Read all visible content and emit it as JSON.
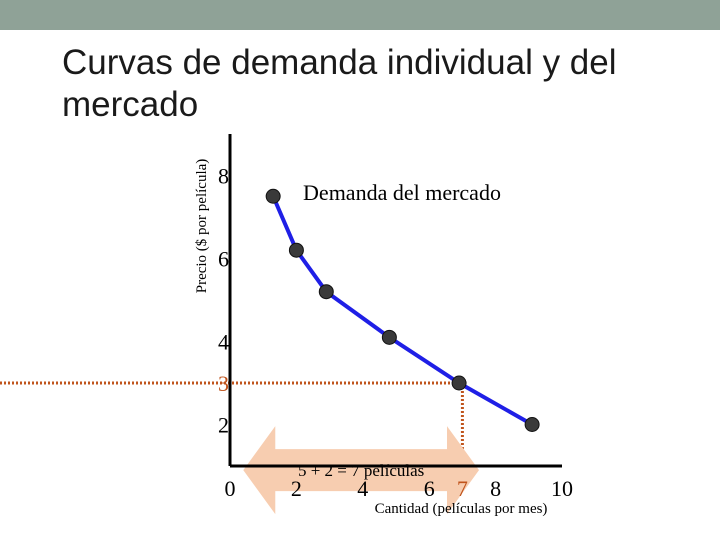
{
  "slide": {
    "title": "Curvas de demanda individual y del mercado"
  },
  "colors": {
    "top_bar": "#8fa297",
    "curve": "#1f1fe6",
    "guide": "#c0541c",
    "arrow_fill": "#f7cdb0",
    "marker": "#3a3a3a"
  },
  "chart_data": {
    "type": "line",
    "title": "Demanda del mercado",
    "xlabel": "Cantidad (películas por mes)",
    "ylabel": "Precio ($ por película)",
    "xlim": [
      0,
      10
    ],
    "ylim": [
      1,
      9
    ],
    "x_ticks": [
      0,
      2,
      4,
      6,
      7,
      8,
      10
    ],
    "y_ticks": [
      2,
      3,
      4,
      6,
      8
    ],
    "series": [
      {
        "name": "Demanda del mercado",
        "points": [
          {
            "x": 1.3,
            "y": 7.5
          },
          {
            "x": 2.0,
            "y": 6.2
          },
          {
            "x": 2.9,
            "y": 5.2
          },
          {
            "x": 4.8,
            "y": 4.1
          },
          {
            "x": 6.9,
            "y": 3.0
          },
          {
            "x": 9.1,
            "y": 2.0
          }
        ]
      }
    ],
    "guide": {
      "x": 7,
      "y": 3
    },
    "annotation": {
      "text": "5 + 2 = 7 películas",
      "from_x": 0.4,
      "to_x": 7.5,
      "y": 0.9
    }
  }
}
